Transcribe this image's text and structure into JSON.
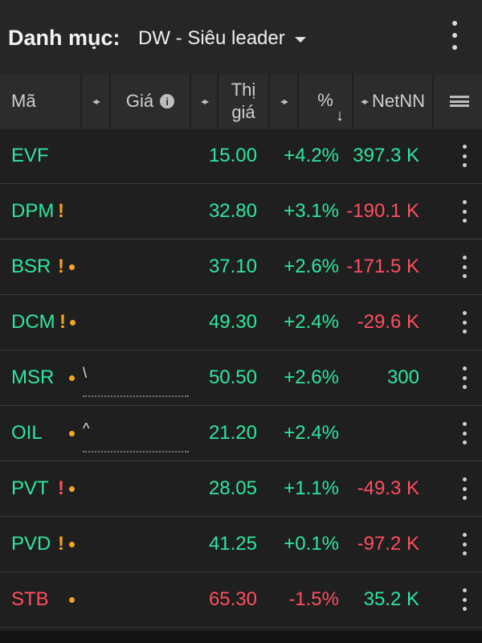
{
  "header": {
    "title": "Danh mục:",
    "portfolio": "DW - Siêu leader"
  },
  "columns": {
    "ma": "Mã",
    "gia": "Giá",
    "thigia_1": "Thị",
    "thigia_2": "giá",
    "pct": "%",
    "netnn": "NetNN",
    "sort_indicator": "↓"
  },
  "colors": {
    "up": "#2ee6a0",
    "down": "#ff4f5e",
    "warn": "#f5a623",
    "alert": "#ff4f5e"
  },
  "rows": [
    {
      "symbol": "EVF",
      "flag": "",
      "flag_color": "",
      "dot": false,
      "price": "15.00",
      "pct": "+4.2%",
      "net": "397.3 K",
      "sym_color": "up",
      "price_color": "up",
      "pct_color": "up",
      "net_color": "up"
    },
    {
      "symbol": "DPM",
      "flag": "!",
      "flag_color": "warn",
      "dot": false,
      "price": "32.80",
      "pct": "+3.1%",
      "net": "-190.1 K",
      "sym_color": "up",
      "price_color": "up",
      "pct_color": "up",
      "net_color": "down"
    },
    {
      "symbol": "BSR",
      "flag": "!",
      "flag_color": "warn",
      "dot": true,
      "price": "37.10",
      "pct": "+2.6%",
      "net": "-171.5 K",
      "sym_color": "up",
      "price_color": "up",
      "pct_color": "up",
      "net_color": "down"
    },
    {
      "symbol": "DCM",
      "flag": "!",
      "flag_color": "warn",
      "dot": true,
      "price": "49.30",
      "pct": "+2.4%",
      "net": "-29.6 K",
      "sym_color": "up",
      "price_color": "up",
      "pct_color": "up",
      "net_color": "down"
    },
    {
      "symbol": "MSR",
      "flag": "",
      "flag_color": "",
      "dot": true,
      "price": "50.50",
      "pct": "+2.6%",
      "net": "300",
      "sym_color": "up",
      "price_color": "up",
      "pct_color": "up",
      "net_color": "up",
      "spark": "\\"
    },
    {
      "symbol": "OIL",
      "flag": "",
      "flag_color": "",
      "dot": true,
      "price": "21.20",
      "pct": "+2.4%",
      "net": "",
      "sym_color": "up",
      "price_color": "up",
      "pct_color": "up",
      "net_color": "up",
      "spark": "^"
    },
    {
      "symbol": "PVT",
      "flag": "!",
      "flag_color": "alert",
      "dot": true,
      "price": "28.05",
      "pct": "+1.1%",
      "net": "-49.3 K",
      "sym_color": "up",
      "price_color": "up",
      "pct_color": "up",
      "net_color": "down"
    },
    {
      "symbol": "PVD",
      "flag": "!",
      "flag_color": "warn",
      "dot": true,
      "price": "41.25",
      "pct": "+0.1%",
      "net": "-97.2 K",
      "sym_color": "up",
      "price_color": "up",
      "pct_color": "up",
      "net_color": "down"
    },
    {
      "symbol": "STB",
      "flag": "",
      "flag_color": "",
      "dot": true,
      "price": "65.30",
      "pct": "-1.5%",
      "net": "35.2 K",
      "sym_color": "down",
      "price_color": "down",
      "pct_color": "down",
      "net_color": "up"
    }
  ]
}
